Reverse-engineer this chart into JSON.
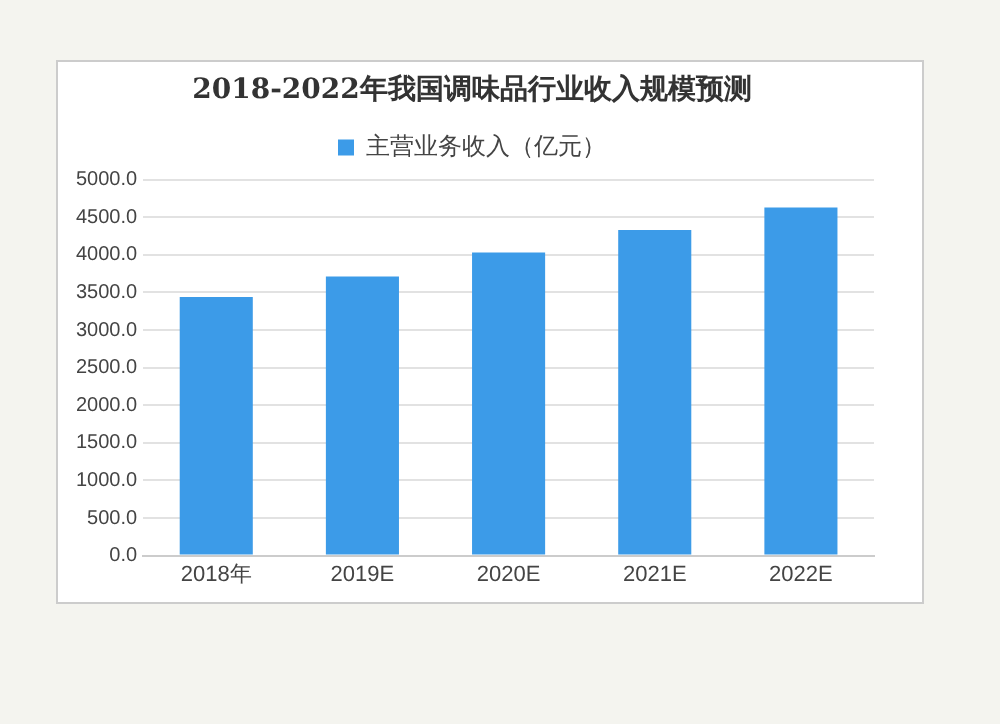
{
  "chart_data": {
    "type": "bar",
    "title": "2018-2022年我国调味品行业收入规模预测",
    "categories": [
      "2018年",
      "2019E",
      "2020E",
      "2021E",
      "2022E"
    ],
    "series": [
      {
        "name": "主营业务收入（亿元）",
        "color": "#3c9be8",
        "values": [
          3440,
          3710,
          4030,
          4330,
          4630
        ]
      }
    ],
    "ylim": [
      0,
      5000
    ],
    "yticks": [
      {
        "value": 0,
        "label": "0.0"
      },
      {
        "value": 500,
        "label": "500.0"
      },
      {
        "value": 1000,
        "label": "1000.0"
      },
      {
        "value": 1500,
        "label": "1500.0"
      },
      {
        "value": 2000,
        "label": "2000.0"
      },
      {
        "value": 2500,
        "label": "2500.0"
      },
      {
        "value": 3000,
        "label": "3000.0"
      },
      {
        "value": 3500,
        "label": "3500.0"
      },
      {
        "value": 4000,
        "label": "4000.0"
      },
      {
        "value": 4500,
        "label": "4500.0"
      },
      {
        "value": 5000,
        "label": "5000.0"
      }
    ],
    "grid": "y",
    "legend": "top"
  }
}
